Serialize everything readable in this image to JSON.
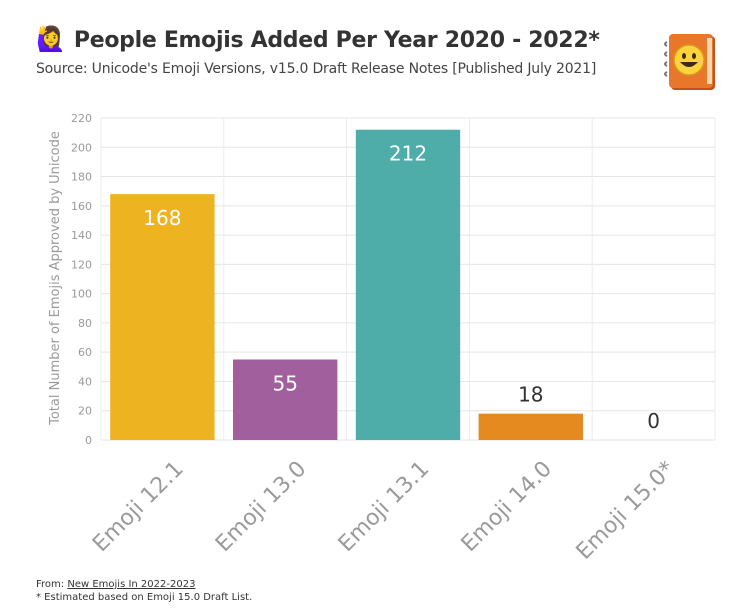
{
  "header": {
    "title": "People Emojis Added Per Year 2020 - 2022*",
    "title_icon": "🙋‍♀️",
    "subtitle": "Source: Unicode's Emoji Versions, v15.0 Draft Release Notes [Published July 2021]"
  },
  "logo": {
    "icon": "emojipedia-book-icon"
  },
  "footer": {
    "from_label": "From:",
    "from_link": "New Emojis In 2022-2023",
    "note": "* Estimated based on Emoji 15.0 Draft List."
  },
  "chart_data": {
    "type": "bar",
    "categories": [
      "Emoji 12.1",
      "Emoji 13.0",
      "Emoji 13.1",
      "Emoji 14.0",
      "Emoji 15.0*"
    ],
    "values": [
      168,
      55,
      212,
      18,
      0
    ],
    "colors": [
      "#edb321",
      "#a25f9d",
      "#4eada9",
      "#e58a1f",
      "#e58a1f"
    ],
    "ylabel": "Total Number of Emojis Approved by Unicode",
    "ylim": [
      0,
      220
    ],
    "yticks": [
      0,
      20,
      40,
      60,
      80,
      100,
      120,
      140,
      160,
      180,
      200,
      220
    ],
    "grid": true,
    "legend": "none"
  }
}
